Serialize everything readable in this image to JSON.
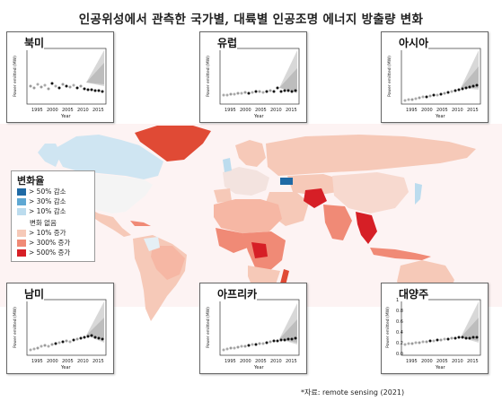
{
  "title": "인공위성에서 관측한 국가별, 대륙별 인공조명 에너지 방출량 변화",
  "legend": {
    "title": "변화율",
    "items": [
      {
        "label": "> 50%  감소",
        "color": "#1f6aa5"
      },
      {
        "label": "> 30%  감소",
        "color": "#5fa8d3"
      },
      {
        "label": "> 10%  감소",
        "color": "#bcdcee"
      },
      {
        "label": "변화 없음",
        "color": "#ffffff"
      },
      {
        "label": "> 10%   증가",
        "color": "#f6c9b8"
      },
      {
        "label": "> 300%  증가",
        "color": "#f08a76"
      },
      {
        "label": "> 500%  증가",
        "color": "#d61f26"
      }
    ]
  },
  "panels": [
    {
      "name": "북미",
      "ylabel": "Power emitted (MW)",
      "xlabel": "Year",
      "xticks": [
        "1995",
        "2000",
        "2005",
        "2010",
        "2015"
      ]
    },
    {
      "name": "유럽",
      "ylabel": "Power emitted (MW)",
      "xlabel": "Year",
      "xticks": [
        "1995",
        "2000",
        "2005",
        "2010",
        "2015"
      ]
    },
    {
      "name": "아시아",
      "ylabel": "Power emitted (MW)",
      "xlabel": "Year",
      "xticks": [
        "1995",
        "2000",
        "2005",
        "2010",
        "2015"
      ]
    },
    {
      "name": "남미",
      "ylabel": "Power emitted (MW)",
      "xlabel": "Year",
      "xticks": [
        "1995",
        "2000",
        "2005",
        "2010",
        "2015"
      ]
    },
    {
      "name": "아프리카",
      "ylabel": "Power emitted (MW)",
      "xlabel": "Year",
      "xticks": [
        "1995",
        "2000",
        "2005",
        "2010",
        "2015"
      ]
    },
    {
      "name": "대양주",
      "ylabel": "Power emitted (MW)",
      "xlabel": "Year",
      "xticks": [
        "1995",
        "2000",
        "2005",
        "2010",
        "2015"
      ],
      "yticks": [
        "0.0",
        "0.2",
        "0.4",
        "0.6",
        "0.8",
        "1.0"
      ]
    }
  ],
  "source": "*자료: remote sensing (2021)"
}
